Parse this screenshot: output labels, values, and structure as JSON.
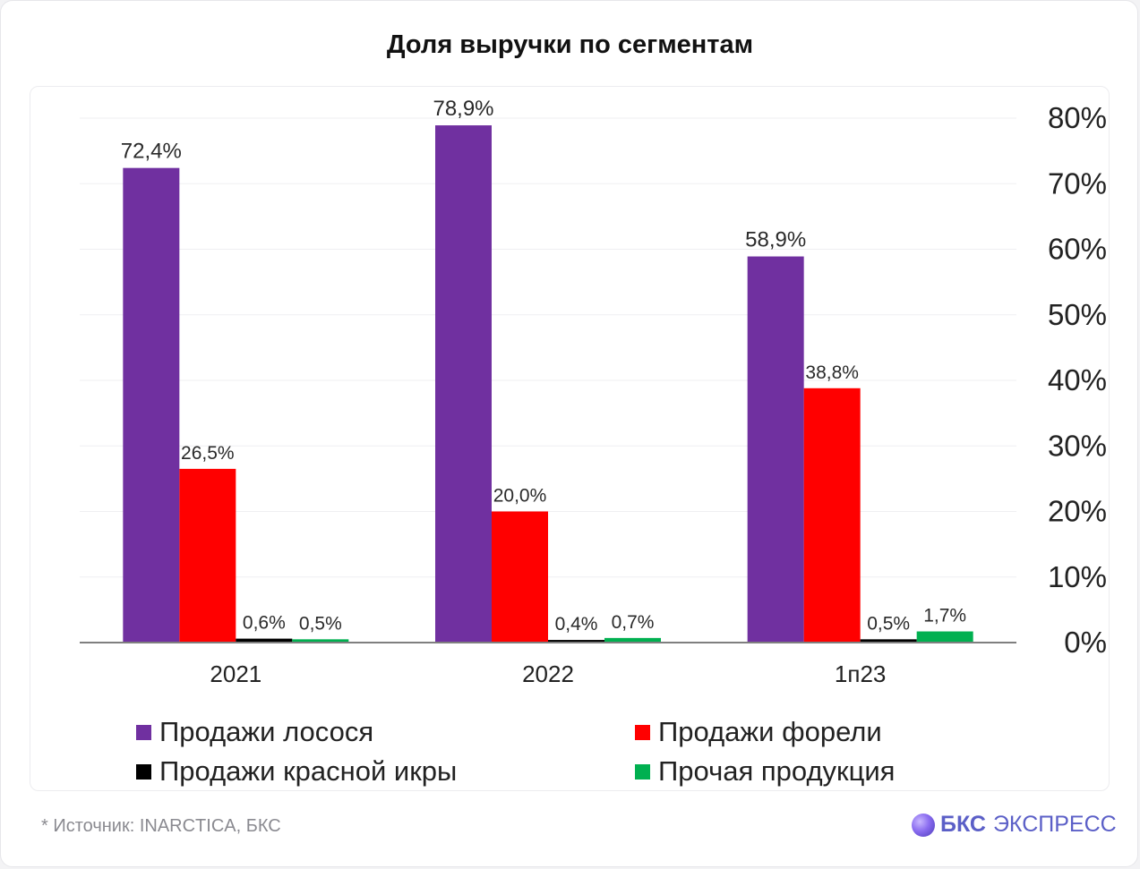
{
  "title": "Доля выручки по сегментам",
  "footer": {
    "source": "*  Источник: INARCTICA, БКС"
  },
  "brand": {
    "name": "БКС",
    "suffix": "ЭКСПРЕСС",
    "logo_icon": "sphere-logo-icon",
    "color": "#5b5fc7"
  },
  "chart_data": {
    "type": "bar",
    "categories": [
      "2021",
      "2022",
      "1п23"
    ],
    "series": [
      {
        "name": "Продажи лосося",
        "color": "#7030a0",
        "values": [
          72.4,
          78.9,
          58.9
        ],
        "labels": [
          "72,4%",
          "78,9%",
          "58,9%"
        ]
      },
      {
        "name": "Продажи форели",
        "color": "#ff0000",
        "values": [
          26.5,
          20.0,
          38.8
        ],
        "labels": [
          "26,5%",
          "20,0%",
          "38,8%"
        ]
      },
      {
        "name": "Продажи красной икры",
        "color": "#000000",
        "values": [
          0.6,
          0.4,
          0.5
        ],
        "labels": [
          "0,6%",
          "0,4%",
          "0,5%"
        ]
      },
      {
        "name": "Прочая продукция",
        "color": "#00b050",
        "values": [
          0.5,
          0.7,
          1.7
        ],
        "labels": [
          "0,5%",
          "0,7%",
          "1,7%"
        ]
      }
    ],
    "y_axis": {
      "position": "right",
      "ylim": [
        0,
        80
      ],
      "ticks": [
        0,
        10,
        20,
        30,
        40,
        50,
        60,
        70,
        80
      ],
      "tick_labels": [
        "0%",
        "10%",
        "20%",
        "30%",
        "40%",
        "50%",
        "60%",
        "70%",
        "80%"
      ]
    },
    "grid": true,
    "legend": {
      "placement": "bottom",
      "columns": 2
    }
  }
}
